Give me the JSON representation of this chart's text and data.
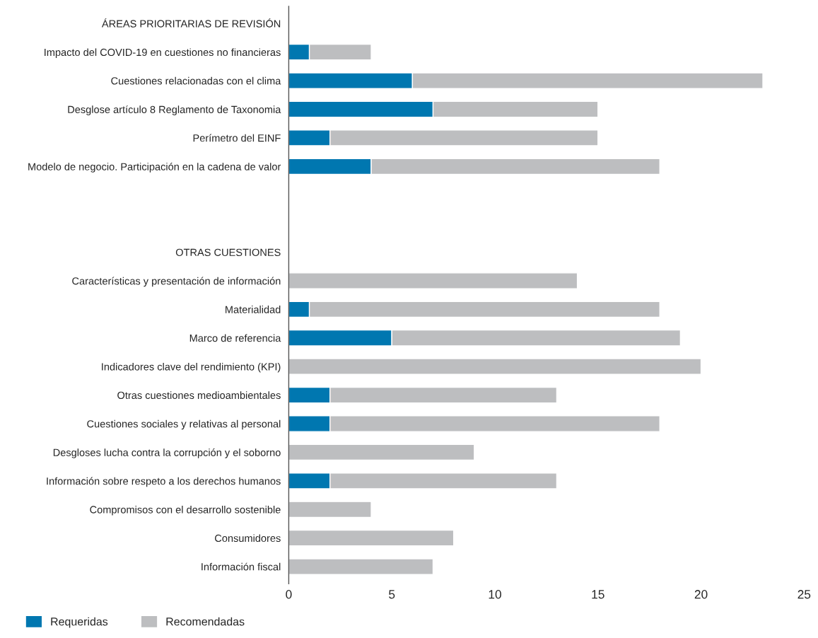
{
  "chart_data": {
    "type": "bar",
    "orientation": "horizontal",
    "stacked": true,
    "categories": [
      "ÁREAS PRIORITARIAS DE REVISIÓN",
      "Impacto del COVID-19 en cuestiones no financieras",
      "Cuestiones relacionadas con el clima",
      "Desglose artículo 8 Reglamento de Taxonomia",
      "Perímetro del EINF",
      "Modelo de negocio. Participación en la cadena de valor",
      null,
      null,
      "OTRAS CUESTIONES",
      "Características y presentación de información",
      "Materialidad",
      "Marco de referencia",
      "Indicadores clave del rendimiento (KPI)",
      "Otras cuestiones medioambientales",
      "Cuestiones sociales y relativas al personal",
      "Desgloses lucha contra la corrupción y el soborno",
      "Información sobre respeto a los derechos humanos",
      "Compromisos con el desarrollo sostenible",
      "Consumidores",
      "Información fiscal"
    ],
    "series": [
      {
        "name": "Requeridas",
        "color": "#0077b0",
        "values": [
          null,
          1,
          6,
          7,
          2,
          4,
          null,
          null,
          null,
          0,
          1,
          5,
          0,
          2,
          2,
          0,
          2,
          0,
          0,
          0
        ]
      },
      {
        "name": "Recomendadas",
        "color": "#bdbec0",
        "values": [
          null,
          3,
          17,
          8,
          13,
          14,
          null,
          null,
          null,
          14,
          17,
          14,
          20,
          11,
          16,
          9,
          11,
          4,
          8,
          7
        ]
      }
    ],
    "xlim": [
      0,
      25
    ],
    "xticks": [
      0,
      5,
      10,
      15,
      20,
      25
    ],
    "grid": false,
    "legend": "bottom left"
  }
}
